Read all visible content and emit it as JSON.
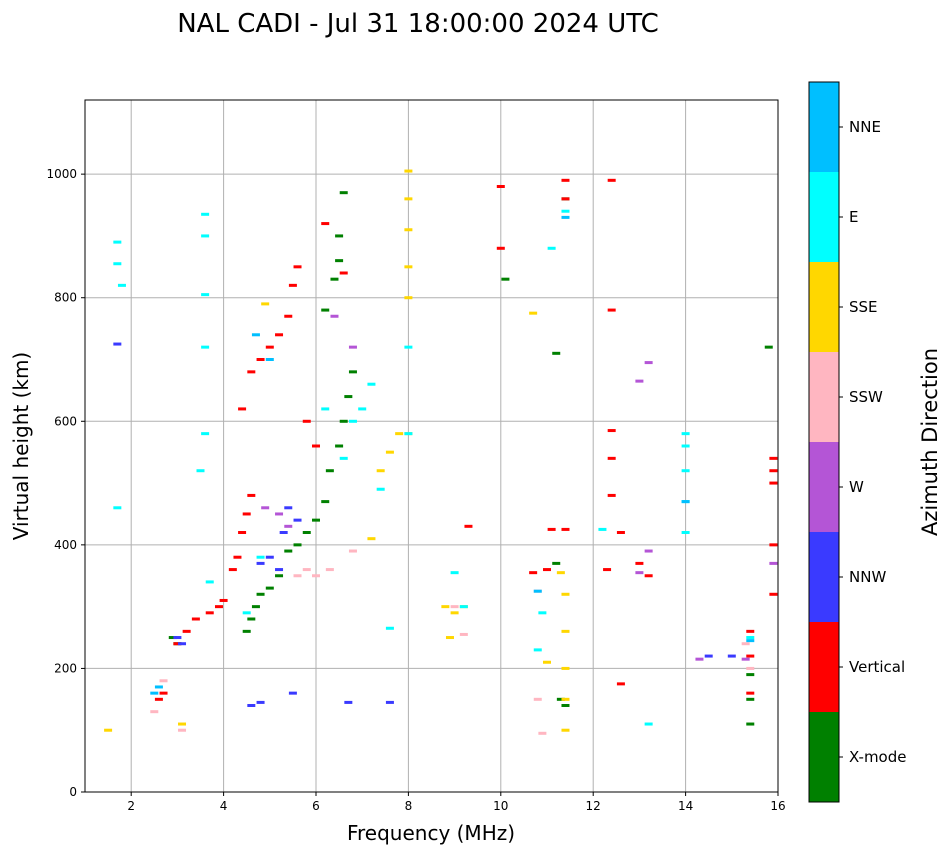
{
  "chart_data": {
    "type": "scatter",
    "title": "NAL CADI - Jul 31 18:00:00 2024 UTC",
    "xlabel": "Frequency (MHz)",
    "ylabel": "Virtual height (km)",
    "xlim": [
      1,
      16
    ],
    "ylim": [
      0,
      1120
    ],
    "xticks": [
      "2",
      "4",
      "6",
      "8",
      "10",
      "12",
      "14",
      "16"
    ],
    "xtick_values": [
      2,
      4,
      6,
      8,
      10,
      12,
      14,
      16
    ],
    "yticks": [
      "0",
      "200",
      "400",
      "600",
      "800",
      "1000"
    ],
    "ytick_values": [
      0,
      200,
      400,
      600,
      800,
      1000
    ],
    "grid": true,
    "colorbar": {
      "title": "Azimuth Direction",
      "categories": [
        {
          "label": "X-mode",
          "color": "#008000"
        },
        {
          "label": "Vertical",
          "color": "#ff0000"
        },
        {
          "label": "NNW",
          "color": "#3a3aff"
        },
        {
          "label": "W",
          "color": "#b455d6"
        },
        {
          "label": "SSW",
          "color": "#ffb6c1"
        },
        {
          "label": "SSE",
          "color": "#ffd700"
        },
        {
          "label": "E",
          "color": "#00ffff"
        },
        {
          "label": "NNE",
          "color": "#00bfff"
        }
      ]
    },
    "series": [
      {
        "name": "X-mode",
        "points": [
          [
            4.5,
            260
          ],
          [
            4.6,
            280
          ],
          [
            4.7,
            300
          ],
          [
            4.8,
            320
          ],
          [
            5.0,
            330
          ],
          [
            5.2,
            350
          ],
          [
            5.4,
            390
          ],
          [
            5.6,
            400
          ],
          [
            5.8,
            420
          ],
          [
            6.0,
            440
          ],
          [
            6.2,
            470
          ],
          [
            6.3,
            520
          ],
          [
            6.5,
            560
          ],
          [
            6.6,
            600
          ],
          [
            6.7,
            640
          ],
          [
            6.8,
            680
          ],
          [
            6.2,
            780
          ],
          [
            6.4,
            830
          ],
          [
            6.5,
            860
          ],
          [
            6.6,
            970
          ],
          [
            6.5,
            900
          ],
          [
            11.4,
            140
          ],
          [
            11.3,
            150
          ],
          [
            11.2,
            370
          ],
          [
            11.2,
            710
          ],
          [
            11.4,
            960
          ],
          [
            10.1,
            830
          ],
          [
            15.4,
            110
          ],
          [
            15.4,
            150
          ],
          [
            15.4,
            190
          ],
          [
            15.8,
            720
          ],
          [
            2.9,
            250
          ],
          [
            3.0,
            240
          ]
        ]
      },
      {
        "name": "Vertical",
        "points": [
          [
            2.6,
            150
          ],
          [
            2.7,
            160
          ],
          [
            3.0,
            240
          ],
          [
            3.2,
            260
          ],
          [
            3.4,
            280
          ],
          [
            3.7,
            290
          ],
          [
            3.9,
            300
          ],
          [
            4.0,
            310
          ],
          [
            4.2,
            360
          ],
          [
            4.3,
            380
          ],
          [
            4.4,
            420
          ],
          [
            4.5,
            450
          ],
          [
            4.6,
            480
          ],
          [
            4.4,
            620
          ],
          [
            4.6,
            680
          ],
          [
            4.8,
            700
          ],
          [
            5.0,
            720
          ],
          [
            5.2,
            740
          ],
          [
            5.4,
            770
          ],
          [
            5.5,
            820
          ],
          [
            5.6,
            850
          ],
          [
            5.8,
            600
          ],
          [
            6.0,
            560
          ],
          [
            6.2,
            920
          ],
          [
            6.6,
            840
          ],
          [
            9.3,
            430
          ],
          [
            10.0,
            880
          ],
          [
            10.0,
            980
          ],
          [
            11.4,
            990
          ],
          [
            11.4,
            960
          ],
          [
            12.4,
            990
          ],
          [
            12.4,
            780
          ],
          [
            12.4,
            585
          ],
          [
            12.4,
            540
          ],
          [
            12.4,
            480
          ],
          [
            12.6,
            420
          ],
          [
            12.6,
            175
          ],
          [
            12.3,
            360
          ],
          [
            13.0,
            370
          ],
          [
            13.2,
            350
          ],
          [
            15.4,
            260
          ],
          [
            15.4,
            220
          ],
          [
            15.4,
            160
          ],
          [
            15.9,
            500
          ],
          [
            15.9,
            520
          ],
          [
            15.9,
            540
          ],
          [
            15.9,
            400
          ],
          [
            15.9,
            320
          ],
          [
            10.7,
            355
          ],
          [
            11.0,
            360
          ],
          [
            11.1,
            425
          ],
          [
            11.4,
            425
          ]
        ]
      },
      {
        "name": "NNW",
        "points": [
          [
            3.0,
            250
          ],
          [
            3.1,
            240
          ],
          [
            4.8,
            370
          ],
          [
            5.0,
            380
          ],
          [
            5.2,
            360
          ],
          [
            5.4,
            460
          ],
          [
            5.6,
            440
          ],
          [
            5.3,
            420
          ],
          [
            4.6,
            140
          ],
          [
            4.8,
            145
          ],
          [
            5.5,
            160
          ],
          [
            6.7,
            145
          ],
          [
            7.6,
            145
          ],
          [
            14.5,
            220
          ],
          [
            15.0,
            220
          ],
          [
            1.7,
            725
          ]
        ]
      },
      {
        "name": "W",
        "points": [
          [
            4.9,
            460
          ],
          [
            5.2,
            450
          ],
          [
            5.4,
            430
          ],
          [
            6.8,
            720
          ],
          [
            6.4,
            770
          ],
          [
            13.2,
            695
          ],
          [
            13.0,
            665
          ],
          [
            13.2,
            390
          ],
          [
            13.0,
            355
          ],
          [
            14.3,
            215
          ],
          [
            15.3,
            215
          ],
          [
            15.9,
            370
          ]
        ]
      },
      {
        "name": "SSW",
        "points": [
          [
            2.5,
            130
          ],
          [
            2.7,
            180
          ],
          [
            3.1,
            100
          ],
          [
            5.6,
            350
          ],
          [
            5.8,
            360
          ],
          [
            6.0,
            350
          ],
          [
            6.3,
            360
          ],
          [
            6.8,
            390
          ],
          [
            9.0,
            300
          ],
          [
            9.2,
            255
          ],
          [
            10.8,
            150
          ],
          [
            10.9,
            95
          ],
          [
            10.8,
            325
          ],
          [
            15.3,
            240
          ],
          [
            15.4,
            200
          ]
        ]
      },
      {
        "name": "SSE",
        "points": [
          [
            1.5,
            100
          ],
          [
            3.1,
            110
          ],
          [
            4.9,
            790
          ],
          [
            7.2,
            410
          ],
          [
            7.4,
            520
          ],
          [
            7.6,
            550
          ],
          [
            7.8,
            580
          ],
          [
            8.0,
            580
          ],
          [
            8.0,
            800
          ],
          [
            8.0,
            850
          ],
          [
            8.0,
            910
          ],
          [
            8.0,
            960
          ],
          [
            8.0,
            1005
          ],
          [
            8.8,
            300
          ],
          [
            9.0,
            290
          ],
          [
            9.2,
            300
          ],
          [
            8.9,
            250
          ],
          [
            10.7,
            775
          ],
          [
            11.4,
            320
          ],
          [
            11.4,
            260
          ],
          [
            11.4,
            200
          ],
          [
            11.4,
            150
          ],
          [
            11.4,
            100
          ],
          [
            11.3,
            355
          ],
          [
            11.0,
            210
          ]
        ]
      },
      {
        "name": "E",
        "points": [
          [
            1.7,
            890
          ],
          [
            1.7,
            855
          ],
          [
            1.8,
            820
          ],
          [
            1.7,
            460
          ],
          [
            3.6,
            935
          ],
          [
            3.6,
            900
          ],
          [
            3.6,
            805
          ],
          [
            3.6,
            720
          ],
          [
            3.6,
            580
          ],
          [
            3.5,
            520
          ],
          [
            3.7,
            340
          ],
          [
            4.5,
            290
          ],
          [
            4.8,
            380
          ],
          [
            6.2,
            620
          ],
          [
            6.6,
            540
          ],
          [
            6.8,
            600
          ],
          [
            7.0,
            620
          ],
          [
            7.2,
            660
          ],
          [
            7.4,
            490
          ],
          [
            7.6,
            265
          ],
          [
            8.0,
            580
          ],
          [
            8.0,
            720
          ],
          [
            9.0,
            355
          ],
          [
            9.2,
            300
          ],
          [
            11.1,
            880
          ],
          [
            11.4,
            940
          ],
          [
            12.2,
            425
          ],
          [
            13.2,
            110
          ],
          [
            14.0,
            420
          ],
          [
            14.0,
            470
          ],
          [
            14.0,
            520
          ],
          [
            14.0,
            560
          ],
          [
            14.0,
            580
          ],
          [
            10.8,
            230
          ],
          [
            10.9,
            290
          ],
          [
            15.4,
            250
          ]
        ]
      },
      {
        "name": "NNE",
        "points": [
          [
            2.5,
            160
          ],
          [
            2.6,
            170
          ],
          [
            4.7,
            740
          ],
          [
            5.0,
            700
          ],
          [
            10.8,
            325
          ],
          [
            11.4,
            930
          ],
          [
            14.0,
            470
          ],
          [
            15.4,
            245
          ]
        ]
      }
    ]
  }
}
